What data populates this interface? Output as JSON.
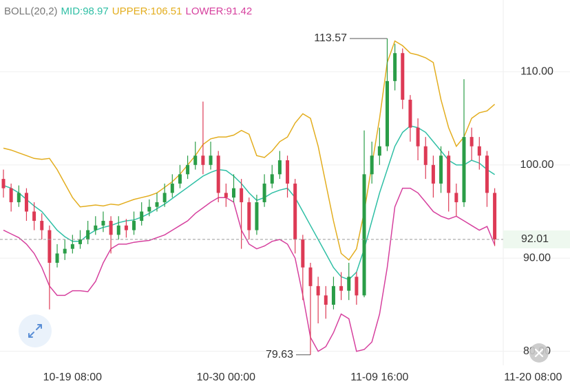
{
  "chart_data": {
    "type": "candlestick",
    "indicator": "BOLL(20,2)",
    "up_color": "#2a9d47",
    "down_color": "#dd3a55",
    "categories": [
      null,
      null,
      null,
      null,
      null,
      null,
      null,
      null,
      null,
      "10-19 08:00",
      null,
      null,
      null,
      null,
      null,
      null,
      null,
      null,
      null,
      null,
      null,
      null,
      null,
      null,
      null,
      null,
      null,
      null,
      null,
      "10-30 00:00",
      null,
      null,
      null,
      null,
      null,
      null,
      null,
      null,
      null,
      null,
      null,
      null,
      null,
      null,
      null,
      null,
      null,
      null,
      null,
      "11-09 16:00",
      null,
      null,
      null,
      null,
      null,
      null,
      null,
      null,
      null,
      null,
      null,
      null,
      null,
      null,
      null,
      null,
      null,
      null,
      null,
      "11-20 08:00"
    ],
    "open": [
      98.5,
      97.5,
      96,
      97,
      95,
      94,
      93,
      89.5,
      90.5,
      91,
      91.5,
      92,
      93,
      93.5,
      94,
      92.5,
      93.5,
      93,
      94,
      95,
      95.5,
      96,
      97,
      98,
      99,
      100,
      101,
      100,
      101,
      97,
      96.5,
      97.5,
      96,
      93,
      96,
      98,
      99,
      100.5,
      98,
      92,
      89,
      87,
      86,
      85,
      87,
      86.5,
      88,
      86,
      99,
      101,
      102,
      109,
      112,
      107,
      104,
      102,
      100,
      98,
      101,
      97,
      96,
      103,
      102,
      101,
      97,
      null,
      null,
      null,
      null,
      null
    ],
    "high": [
      99.5,
      98,
      97.8,
      97.5,
      96,
      94.8,
      93.5,
      91.5,
      92,
      92.5,
      93,
      94,
      94.5,
      95,
      94.5,
      94.5,
      94.2,
      95,
      96,
      96.3,
      97,
      98,
      99,
      100,
      101,
      102.5,
      106.8,
      102.5,
      101.5,
      98,
      99,
      98.5,
      96.5,
      96.8,
      99,
      100,
      101.5,
      101,
      98.5,
      92.5,
      89.5,
      88,
      87,
      88,
      88.5,
      89.5,
      88.5,
      103.7,
      102.5,
      104,
      113.57,
      113,
      112.5,
      107.5,
      105,
      103,
      101,
      102,
      101.5,
      98,
      109.2,
      104,
      103,
      101.5,
      97.5,
      null,
      null,
      null,
      null,
      null
    ],
    "low": [
      96.5,
      95,
      95.5,
      94,
      93,
      92,
      84.5,
      89,
      89.8,
      90.5,
      91,
      91.5,
      92.5,
      92.8,
      90.5,
      92,
      92.2,
      92.5,
      93.5,
      94.5,
      95,
      95.5,
      96.5,
      97.5,
      98.5,
      99.5,
      99,
      99.5,
      96,
      95.5,
      96,
      91,
      92,
      92.5,
      95.5,
      97.5,
      98.5,
      96.5,
      90.5,
      85.5,
      79.63,
      83,
      83.5,
      84.5,
      85.5,
      85.5,
      85,
      85.8,
      98,
      100,
      101.5,
      108,
      106,
      102.5,
      100.5,
      98.5,
      96.5,
      97,
      95,
      94.5,
      95.5,
      100.5,
      99.5,
      95.5,
      91.3,
      null,
      null,
      null,
      null,
      null
    ],
    "close": [
      97.5,
      96,
      97,
      95,
      94,
      93,
      89.5,
      90.5,
      91,
      91.5,
      92,
      93,
      93.5,
      94,
      92.5,
      93.5,
      93,
      94,
      95,
      95.5,
      96,
      97,
      98,
      99,
      100,
      101,
      100,
      101,
      97,
      96.5,
      97.5,
      96,
      93,
      96,
      98,
      99,
      100.5,
      98,
      92,
      89,
      87,
      86,
      85,
      87,
      86.5,
      88,
      86,
      99,
      101,
      102,
      109,
      112,
      107,
      104,
      102,
      100,
      98,
      101,
      97,
      96,
      103,
      102,
      101,
      97,
      92.01,
      null,
      null,
      null,
      null,
      null
    ],
    "series": [
      {
        "label": "MID:98.97",
        "color": "#2fbfa5",
        "values": [
          97.8,
          97.5,
          97,
          96.3,
          95.6,
          95,
          94,
          93,
          92.3,
          91.8,
          91.8,
          92.5,
          93,
          93.3,
          93.5,
          93.8,
          94,
          94.1,
          94.4,
          94.8,
          95.3,
          95.8,
          96.4,
          97,
          97.6,
          98.2,
          98.8,
          99.2,
          99.5,
          99.4,
          98.8,
          98,
          97,
          96.2,
          96.5,
          97,
          97.3,
          97.5,
          96.5,
          95,
          93.5,
          92,
          90.5,
          89,
          88,
          87.7,
          88.5,
          91,
          94,
          97,
          99.5,
          102,
          103.5,
          104.2,
          104,
          103.5,
          102.5,
          101.5,
          100.5,
          100,
          100,
          100.5,
          100.2,
          99.5,
          98.97,
          null,
          null,
          null,
          null,
          null
        ]
      },
      {
        "label": "UPPER:106.51",
        "color": "#e3ad1e",
        "values": [
          101.8,
          101.6,
          101.3,
          101,
          100.7,
          100.6,
          100.7,
          99.5,
          98,
          96.5,
          95.5,
          95.6,
          95.7,
          95.6,
          95.8,
          95.7,
          96,
          96.3,
          96.5,
          96.7,
          97,
          97.6,
          98.2,
          99,
          100,
          101,
          102.2,
          102.8,
          103,
          103,
          103.2,
          103.7,
          103.3,
          101,
          100.8,
          101.5,
          102.5,
          103,
          104.5,
          105.5,
          105,
          102,
          98,
          94,
          90.5,
          89.8,
          91,
          95,
          100,
          105,
          111,
          113.3,
          112.8,
          112,
          111.8,
          111.5,
          111,
          107,
          104,
          102,
          103,
          105,
          105.6,
          105.8,
          106.51,
          null,
          null,
          null,
          null,
          null
        ]
      },
      {
        "label": "LOWER:91.42",
        "color": "#d6409e",
        "values": [
          93,
          92.6,
          92.2,
          91.5,
          90.5,
          89,
          87,
          86,
          86,
          86.5,
          86.5,
          86.4,
          87.5,
          89.5,
          91,
          91.5,
          91.5,
          91.7,
          91.8,
          91.9,
          92.2,
          92.5,
          93,
          93.5,
          94,
          94.8,
          95.4,
          96,
          96.5,
          96.5,
          96,
          93,
          91.5,
          91,
          91.3,
          91.8,
          92,
          91.5,
          90,
          86,
          81.5,
          80,
          80.5,
          82,
          84,
          83.5,
          80,
          80.2,
          81,
          84,
          89,
          95.5,
          97.5,
          97.5,
          97,
          96,
          95,
          94.5,
          94.2,
          94.5,
          94,
          93.5,
          93,
          93.4,
          91.42,
          null,
          null,
          null,
          null,
          null
        ]
      }
    ],
    "ylim": [
      78.5,
      117.7
    ],
    "yticks": [
      {
        "value": 80,
        "label": "80.00"
      },
      {
        "value": 90,
        "label": "90.00"
      },
      {
        "value": 100,
        "label": "100.00"
      },
      {
        "value": 110,
        "label": "110.00"
      }
    ],
    "grid": true,
    "high_marker": 113.57,
    "low_marker": 79.63,
    "last_price": {
      "value": 92.01,
      "label": "92.01"
    }
  }
}
